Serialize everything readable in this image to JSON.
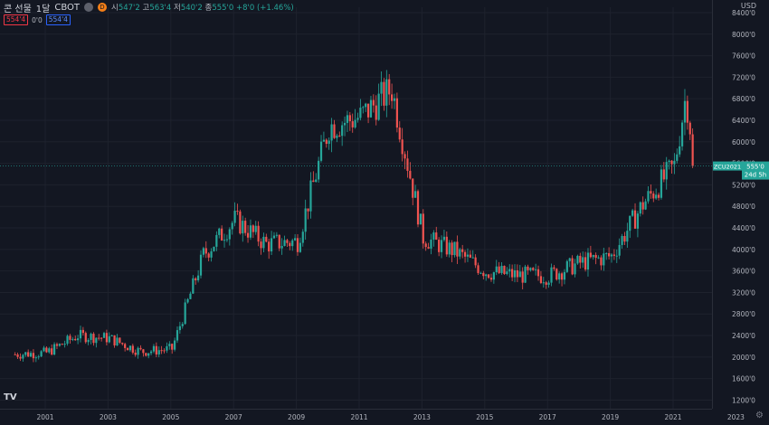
{
  "header": {
    "symbol": "콘 선물",
    "interval": "1달",
    "exchange": "CBOT",
    "status_letter": "D",
    "open_label": "시",
    "open": "547'2",
    "high_label": "고",
    "high": "563'4",
    "low_label": "저",
    "low": "540'2",
    "close_label": "종",
    "close": "555'0",
    "change": "+8'0 (+1.46%)"
  },
  "trade": {
    "sell": "554'4",
    "spread": "0'0",
    "buy": "554'4"
  },
  "currency": "USD",
  "last_price": {
    "label": "ZCU2021",
    "value": "555'0",
    "countdown": "24d 5h"
  },
  "colors": {
    "up": "#26a69a",
    "down": "#ef5350",
    "background": "#131722",
    "grid": "#1e222d"
  },
  "icons": {
    "logo": "tradingview-logo-icon",
    "settings": "gear-icon"
  },
  "chart_data": {
    "type": "candlestick",
    "title": "",
    "y_axis": {
      "min": 1200,
      "max": 8400,
      "step": 400,
      "ticks": [
        "1200'0",
        "1600'0",
        "2000'0",
        "2400'0",
        "2800'0",
        "3200'0",
        "3600'0",
        "4000'0",
        "4400'0",
        "4800'0",
        "5200'0",
        "5600'0",
        "6000'0",
        "6400'0",
        "6800'0",
        "7200'0",
        "7600'0",
        "8000'0",
        "8400'0"
      ]
    },
    "x_axis": {
      "ticks": [
        "2001",
        "2003",
        "2005",
        "2007",
        "2009",
        "2011",
        "2013",
        "2015",
        "2017",
        "2019",
        "2021",
        "2023"
      ]
    },
    "grid": true,
    "yearly_close": [
      {
        "year": 2000,
        "close": 2050
      },
      {
        "year": 2001,
        "close": 2080
      },
      {
        "year": 2002,
        "close": 2400
      },
      {
        "year": 2003,
        "close": 2350
      },
      {
        "year": 2004,
        "close": 2100
      },
      {
        "year": 2005,
        "close": 2150
      },
      {
        "year": 2006,
        "close": 3900
      },
      {
        "year": 2007,
        "close": 4550
      },
      {
        "year": 2008,
        "close": 4100
      },
      {
        "year": 2009,
        "close": 4150
      },
      {
        "year": 2010,
        "close": 6290
      },
      {
        "year": 2011,
        "close": 6460
      },
      {
        "year": 2012,
        "close": 6980
      },
      {
        "year": 2013,
        "close": 4220
      },
      {
        "year": 2014,
        "close": 3970
      },
      {
        "year": 2015,
        "close": 3590
      },
      {
        "year": 2016,
        "close": 3520
      },
      {
        "year": 2017,
        "close": 3510
      },
      {
        "year": 2018,
        "close": 3750
      },
      {
        "year": 2019,
        "close": 3880
      },
      {
        "year": 2020,
        "close": 4840
      },
      {
        "year": 2021,
        "close": 5550
      }
    ],
    "last_close": 5550
  }
}
